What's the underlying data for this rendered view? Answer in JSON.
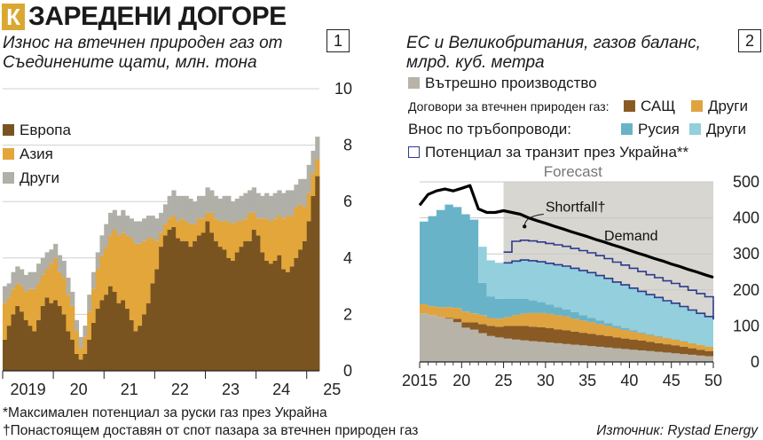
{
  "header": {
    "logo": "К",
    "title": "ЗАРЕДЕНИ ДОГОРЕ"
  },
  "footnotes": {
    "star": "*Максимален потенциал за руски газ през Украйна",
    "dagger": "†Понастоящем доставян от спот пазара за втечнен природен газ",
    "source": "Източник: Rystad Energy"
  },
  "colors": {
    "europe": "#7a5420",
    "asia": "#e3a63a",
    "other_gray": "#b0afa8",
    "domestic": "#b7b3a9",
    "us_lng": "#8a5a24",
    "other_lng": "#dfa43f",
    "russia": "#69b3c9",
    "other_pipe": "#93cfdd",
    "ukraine_line": "#2d3a8c",
    "forecast_bg": "#d8d6d0",
    "grid": "#d0d0d0"
  },
  "chart_data": [
    {
      "panel_number": "1",
      "type": "bar",
      "stacked": true,
      "title": "Износ на втечнен природен газ от Съединените щати, млн. тона",
      "ylim": [
        0,
        10
      ],
      "yticks": [
        0,
        2,
        4,
        6,
        8,
        10
      ],
      "ytick_labels": [
        "0",
        "2",
        "4",
        "6",
        "8",
        "10"
      ],
      "xtick_labels": [
        "2019",
        "20",
        "21",
        "22",
        "23",
        "24",
        "25"
      ],
      "x_start": "2019-01",
      "x_end": "2025-03",
      "grid": true,
      "legend_position": "top-left",
      "series": [
        {
          "name": "Европа",
          "values": [
            1.1,
            1.6,
            2.0,
            2.3,
            2.1,
            1.8,
            1.6,
            1.4,
            1.8,
            2.3,
            2.6,
            2.4,
            2.5,
            2.3,
            2.0,
            1.4,
            1.1,
            0.6,
            0.4,
            0.6,
            1.1,
            1.7,
            2.2,
            2.5,
            2.7,
            3.0,
            2.8,
            2.4,
            2.5,
            2.2,
            1.8,
            1.4,
            1.6,
            2.0,
            2.4,
            3.1,
            3.6,
            4.4,
            4.8,
            5.0,
            5.1,
            4.7,
            4.6,
            4.6,
            4.4,
            4.6,
            4.8,
            4.9,
            5.3,
            4.9,
            4.6,
            4.4,
            4.3,
            4.0,
            3.9,
            4.2,
            4.4,
            4.6,
            4.6,
            5.0,
            4.8,
            4.2,
            3.9,
            3.8,
            3.9,
            4.1,
            3.6,
            3.5,
            3.7,
            4.0,
            4.3,
            4.6,
            5.3,
            6.2,
            6.9
          ]
        },
        {
          "name": "Азия",
          "values": [
            1.3,
            1.0,
            0.9,
            0.8,
            0.9,
            1.0,
            1.3,
            1.5,
            1.3,
            1.1,
            1.0,
            1.4,
            1.5,
            1.2,
            1.3,
            1.3,
            1.2,
            0.8,
            0.4,
            0.6,
            1.0,
            1.2,
            1.4,
            1.6,
            1.7,
            1.8,
            2.2,
            2.4,
            2.4,
            2.6,
            2.9,
            3.1,
            2.9,
            2.6,
            2.3,
            1.6,
            1.0,
            0.5,
            0.4,
            0.4,
            0.4,
            0.6,
            0.8,
            0.7,
            0.8,
            0.6,
            0.6,
            0.5,
            0.3,
            0.7,
            0.8,
            0.9,
            1.0,
            1.3,
            1.3,
            1.1,
            0.9,
            0.8,
            1.0,
            0.6,
            0.6,
            1.2,
            1.5,
            1.5,
            1.5,
            1.4,
            1.8,
            2.0,
            1.8,
            1.8,
            1.6,
            1.2,
            1.0,
            0.8,
            0.6
          ]
        },
        {
          "name": "Други",
          "values": [
            0.6,
            0.5,
            0.6,
            0.6,
            0.6,
            0.6,
            0.6,
            0.6,
            0.7,
            0.6,
            0.6,
            0.5,
            0.5,
            0.6,
            0.6,
            0.6,
            0.5,
            0.4,
            0.4,
            0.4,
            0.6,
            0.6,
            0.6,
            0.7,
            0.8,
            0.8,
            0.7,
            0.7,
            0.8,
            0.7,
            0.7,
            0.8,
            0.8,
            0.8,
            0.8,
            0.8,
            0.8,
            0.7,
            0.7,
            0.8,
            0.9,
            0.9,
            0.8,
            0.9,
            0.9,
            0.8,
            0.8,
            0.8,
            0.9,
            0.8,
            0.8,
            0.8,
            0.9,
            0.9,
            0.8,
            0.8,
            0.9,
            0.9,
            0.8,
            0.9,
            0.9,
            0.8,
            0.9,
            0.9,
            0.9,
            0.9,
            0.9,
            0.9,
            0.9,
            0.8,
            0.9,
            1.0,
            1.0,
            0.8,
            0.8
          ]
        }
      ]
    },
    {
      "panel_number": "2",
      "type": "area",
      "stacked": true,
      "title": "ЕС и Великобритания, газов баланс, млрд. куб. метра",
      "x": [
        2015,
        2016,
        2017,
        2018,
        2019,
        2020,
        2021,
        2022,
        2023,
        2024,
        2025,
        2026,
        2027,
        2028,
        2029,
        2030,
        2031,
        2032,
        2033,
        2034,
        2035,
        2036,
        2037,
        2038,
        2039,
        2040,
        2041,
        2042,
        2043,
        2044,
        2045,
        2046,
        2047,
        2048,
        2049,
        2050
      ],
      "xtick_labels": [
        "2015",
        "20",
        "25",
        "30",
        "35",
        "40",
        "45",
        "50"
      ],
      "xticks": [
        2015,
        2020,
        2025,
        2030,
        2035,
        2040,
        2045,
        2050
      ],
      "ylim": [
        0,
        500
      ],
      "yticks": [
        0,
        100,
        200,
        300,
        400,
        500
      ],
      "ytick_labels": [
        "0",
        "100",
        "200",
        "300",
        "400",
        "500"
      ],
      "forecast_start": 2025,
      "forecast_label": "Forecast",
      "legend_position": "top",
      "legend_group_lng": "Договори за втечнен природен газ:",
      "legend_group_pipe": "Внос по тръбопроводи:",
      "series": [
        {
          "name": "Вътрешно производство",
          "values": [
            135,
            130,
            125,
            120,
            110,
            95,
            90,
            80,
            72,
            68,
            65,
            62,
            60,
            58,
            56,
            54,
            52,
            50,
            48,
            46,
            44,
            42,
            40,
            38,
            36,
            34,
            32,
            30,
            28,
            26,
            24,
            22,
            20,
            18,
            16,
            15
          ]
        },
        {
          "name": "САЩ",
          "values": [
            0,
            0,
            0,
            2,
            10,
            15,
            20,
            25,
            28,
            30,
            35,
            38,
            40,
            40,
            40,
            40,
            38,
            38,
            36,
            35,
            34,
            33,
            32,
            30,
            29,
            28,
            27,
            26,
            24,
            23,
            22,
            20,
            18,
            16,
            14,
            12
          ]
        },
        {
          "name": "Други",
          "values": [
            25,
            25,
            27,
            30,
            30,
            30,
            25,
            25,
            22,
            22,
            25,
            30,
            35,
            38,
            40,
            40,
            40,
            38,
            36,
            34,
            32,
            30,
            28,
            26,
            24,
            22,
            20,
            19,
            18,
            17,
            16,
            15,
            14,
            13,
            12,
            11
          ]
        },
        {
          "name": "Русия",
          "values": [
            230,
            250,
            270,
            285,
            280,
            270,
            260,
            90,
            60,
            55,
            50,
            45,
            40,
            35,
            30,
            25,
            22,
            20,
            18,
            15,
            12,
            10,
            8,
            6,
            5,
            4,
            3,
            2,
            2,
            1,
            1,
            1,
            0,
            0,
            0,
            0
          ]
        },
        {
          "name": "Други",
          "values": [
            0,
            0,
            0,
            0,
            0,
            0,
            0,
            100,
            100,
            100,
            100,
            105,
            108,
            110,
            112,
            115,
            118,
            120,
            122,
            124,
            126,
            125,
            124,
            122,
            120,
            117,
            114,
            110,
            107,
            103,
            100,
            96,
            92,
            88,
            84,
            80
          ]
        }
      ],
      "line_series": [
        {
          "name": "Потенциал за транзит през Украйна**",
          "values": [
            null,
            null,
            null,
            null,
            null,
            null,
            null,
            null,
            null,
            null,
            30,
            55,
            55,
            55,
            55,
            55,
            55,
            55,
            55,
            55,
            55,
            55,
            55,
            55,
            55,
            55,
            55,
            55,
            55,
            55,
            55,
            55,
            55,
            55,
            55,
            55
          ]
        },
        {
          "name": "Demand",
          "values": [
            435,
            465,
            475,
            480,
            475,
            482,
            490,
            425,
            415,
            415,
            420,
            415,
            410,
            400,
            392,
            385,
            377,
            370,
            362,
            355,
            348,
            340,
            333,
            325,
            318,
            310,
            302,
            295,
            287,
            280,
            272,
            265,
            257,
            250,
            242,
            235
          ]
        }
      ],
      "annotations": {
        "demand": "Demand",
        "shortfall": "Shortfall†"
      }
    }
  ]
}
